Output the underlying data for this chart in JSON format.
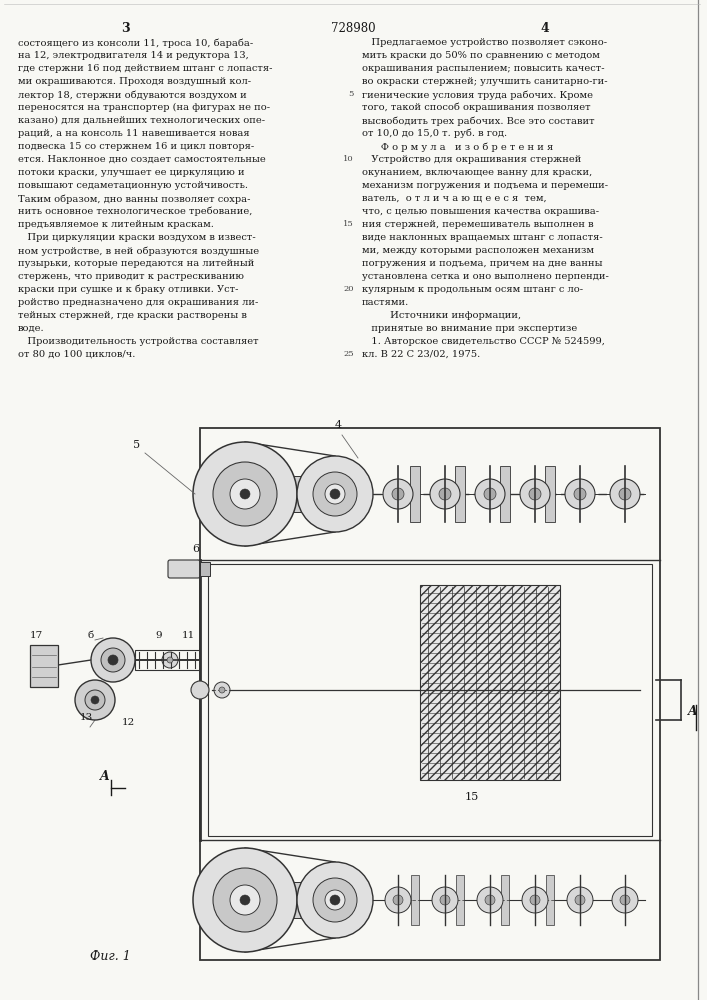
{
  "page_width": 7.07,
  "page_height": 10.0,
  "dpi": 100,
  "background_color": "#f8f8f4",
  "patent_number": "728980",
  "page_num_left": "3",
  "page_num_right": "4",
  "left_column_lines": [
    "состоящего из консоли 11, троса 10, бараба-",
    "на 12, электродвигателя 14 и редуктора 13,",
    "где стержни 16 под действием штанг с лопастя-",
    "ми окрашиваются. Проходя воздушный кол-",
    "лектор 18, стержни обдуваются воздухом и",
    "переносятся на транспортер (на фигурах не по-",
    "казано) для дальнейших технологических опе-",
    "раций, а на консоль 11 навешивается новая",
    "подвеска 15 со стержнем 16 и цикл повторя-",
    "ется. Наклонное дно создает самостоятельные",
    "потоки краски, улучшает ее циркуляцию и",
    "повышают седаметационную устойчивость.",
    "Таким образом, дно ванны позволяет сохра-",
    "нить основное технологическое требование,",
    "предъявляемое к литейным краскам.",
    "   При циркуляции краски воздухом в извест-",
    "ном устройстве, в ней образуются воздушные",
    "пузырьки, которые передаются на литейный",
    "стержень, что приводит к растрескиванию",
    "краски при сушке и к браку отливки. Уст-",
    "ройство предназначено для окрашивания ли-",
    "тейных стержней, где краски растворены в",
    "воде.",
    "   Производительность устройства составляет",
    "от 80 до 100 циклов/ч."
  ],
  "right_column_lines": [
    "   Предлагаемое устройство позволяет сэконо-",
    "мить краски до 50% по сравнению с методом",
    "окрашивания распылением; повысить качест-",
    "во окраски стержней; улучшить санитарно-ги-",
    "гиенические условия труда рабочих. Кроме",
    "того, такой способ окрашивания позволяет",
    "высвободить трех рабочих. Все это составит",
    "от 10,0 до 15,0 т. руб. в год.",
    "      Ф о р м у л а   и з о б р е т е н и я",
    "   Устройство для окрашивания стержней",
    "окунанием, включающее ванну для краски,",
    "механизм погружения и подъема и перемеши-",
    "ватель,  о т л и ч а ю щ е е с я  тем,",
    "что, с целью повышения качества окрашива-",
    "ния стержней, перемешиватель выполнен в",
    "виде наклонных вращаемых штанг с лопастя-",
    "ми, между которыми расположен механизм",
    "погружения и подъема, причем на дне ванны",
    "установлена сетка и оно выполнено перпенди-",
    "кулярным к продольным осям штанг с ло-",
    "пастями.",
    "         Источники информации,",
    "   принятые во внимание при экспертизе",
    "   1. Авторское свидетельство СССР № 524599,",
    "кл. В 22 С 23/02, 1975."
  ],
  "line_numbers": [
    5,
    10,
    15,
    20,
    25
  ],
  "line_number_rows": [
    4,
    9,
    14,
    19,
    24
  ],
  "fig_caption": "Фиг. 1"
}
